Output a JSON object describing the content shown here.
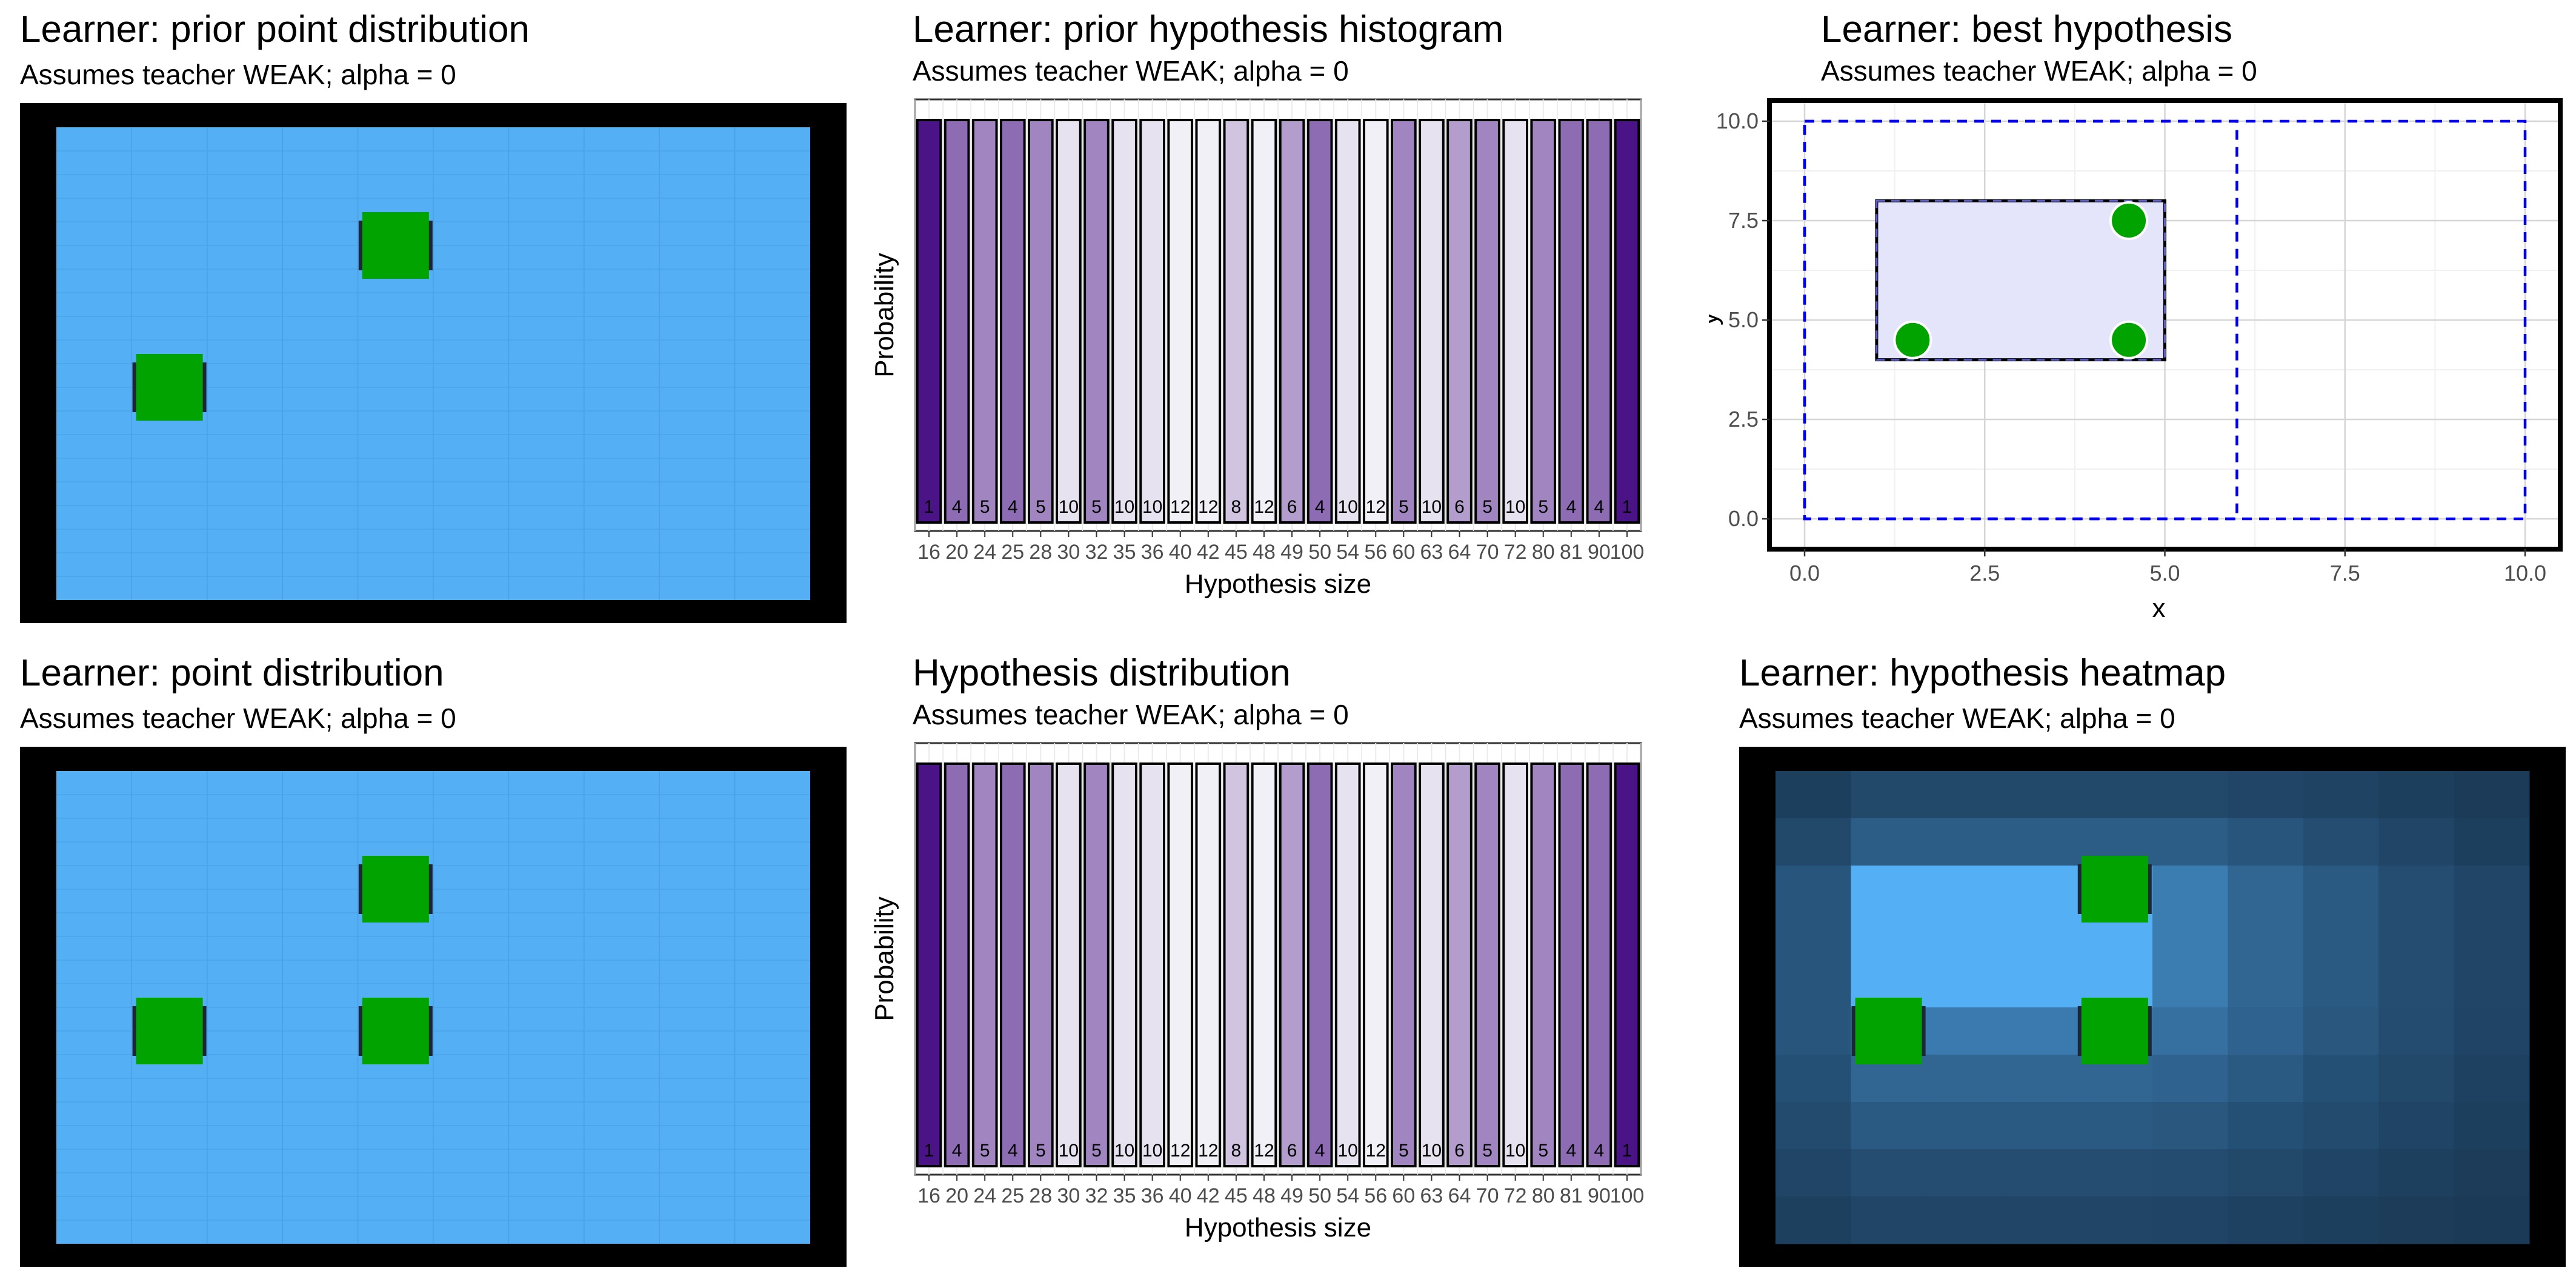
{
  "panels": {
    "prior_point": {
      "title": "Learner: prior point distribution",
      "subtitle": "Assumes teacher WEAK; alpha = 0"
    },
    "prior_hist": {
      "title": "Learner: prior hypothesis histogram",
      "subtitle": "Assumes teacher WEAK; alpha = 0"
    },
    "best_hyp": {
      "title": "Learner: best hypothesis",
      "subtitle": "Assumes teacher WEAK; alpha = 0"
    },
    "point_dist": {
      "title": "Learner: point distribution",
      "subtitle": "Assumes teacher WEAK; alpha = 0"
    },
    "hyp_dist": {
      "title": "Hypothesis distribution",
      "subtitle": "Assumes teacher WEAK; alpha = 0"
    },
    "heatmap": {
      "title": "Learner: hypothesis heatmap",
      "subtitle": "Assumes teacher WEAK; alpha = 0"
    }
  },
  "colors": {
    "grid_fill": "#55aff5",
    "point_marker": "#00a300",
    "panel_border": "#000000",
    "bar_light": "#f2f0f7",
    "bar_dark": "#4a1486",
    "hypothesis_fill": "#e4e4fb",
    "dashed_rect": "#0000ee"
  },
  "chart_data": [
    {
      "id": "prior_point",
      "type": "heatmap",
      "grid_cols": 10,
      "grid_rows": 10,
      "marker_cells": [
        [
          4.5,
          7.5
        ],
        [
          1.5,
          4.5
        ]
      ]
    },
    {
      "id": "prior_hist",
      "type": "bar",
      "xlabel": "Hypothesis size",
      "ylabel": "Probability",
      "categories": [
        "16",
        "20",
        "24",
        "25",
        "28",
        "30",
        "32",
        "35",
        "36",
        "40",
        "42",
        "45",
        "48",
        "49",
        "50",
        "54",
        "56",
        "60",
        "63",
        "64",
        "70",
        "72",
        "80",
        "81",
        "90",
        "100"
      ],
      "values": [
        1,
        1,
        1,
        1,
        1,
        1,
        1,
        1,
        1,
        1,
        1,
        1,
        1,
        1,
        1,
        1,
        1,
        1,
        1,
        1,
        1,
        1,
        1,
        1,
        1,
        1
      ],
      "counts": [
        1,
        4,
        5,
        4,
        5,
        10,
        5,
        10,
        10,
        12,
        12,
        8,
        12,
        6,
        4,
        10,
        12,
        5,
        10,
        6,
        5,
        10,
        5,
        4,
        4,
        1
      ]
    },
    {
      "id": "best_hyp",
      "type": "scatter",
      "xlabel": "x",
      "ylabel": "y",
      "xlim": [
        0,
        10
      ],
      "ylim": [
        0,
        10
      ],
      "xticks": [
        "0.0",
        "2.5",
        "5.0",
        "7.5",
        "10.0"
      ],
      "yticks": [
        "0.0",
        "2.5",
        "5.0",
        "7.5",
        "10.0"
      ],
      "grid": true,
      "best_rect": {
        "x0": 1,
        "x1": 5,
        "y0": 4,
        "y1": 8
      },
      "dashed_rects": [
        {
          "x0": 0,
          "x1": 6,
          "y0": 0,
          "y1": 10
        },
        {
          "x0": 0,
          "x1": 10,
          "y0": 0,
          "y1": 10
        }
      ],
      "points": [
        [
          4.5,
          7.5
        ],
        [
          1.5,
          4.5
        ],
        [
          4.5,
          4.5
        ]
      ]
    },
    {
      "id": "point_dist",
      "type": "heatmap",
      "grid_cols": 10,
      "grid_rows": 10,
      "marker_cells": [
        [
          4.5,
          7.5
        ],
        [
          1.5,
          4.5
        ],
        [
          4.5,
          4.5
        ]
      ]
    },
    {
      "id": "hyp_dist",
      "type": "bar",
      "xlabel": "Hypothesis size",
      "ylabel": "Probability",
      "categories": [
        "16",
        "20",
        "24",
        "25",
        "28",
        "30",
        "32",
        "35",
        "36",
        "40",
        "42",
        "45",
        "48",
        "49",
        "50",
        "54",
        "56",
        "60",
        "63",
        "64",
        "70",
        "72",
        "80",
        "81",
        "90",
        "100"
      ],
      "values": [
        1,
        1,
        1,
        1,
        1,
        1,
        1,
        1,
        1,
        1,
        1,
        1,
        1,
        1,
        1,
        1,
        1,
        1,
        1,
        1,
        1,
        1,
        1,
        1,
        1,
        1
      ],
      "counts": [
        1,
        4,
        5,
        4,
        5,
        10,
        5,
        10,
        10,
        12,
        12,
        8,
        12,
        6,
        4,
        10,
        12,
        5,
        10,
        6,
        5,
        10,
        5,
        4,
        4,
        1
      ]
    },
    {
      "id": "heatmap",
      "type": "heatmap",
      "grid_cols": 10,
      "grid_rows": 10,
      "values": [
        [
          0.15,
          0.22,
          0.22,
          0.22,
          0.22,
          0.22,
          0.2,
          0.18,
          0.15,
          0.12
        ],
        [
          0.22,
          0.38,
          0.38,
          0.38,
          0.38,
          0.38,
          0.32,
          0.26,
          0.2,
          0.15
        ],
        [
          0.32,
          1.0,
          1.0,
          1.0,
          1.0,
          0.62,
          0.45,
          0.35,
          0.26,
          0.2
        ],
        [
          0.32,
          1.0,
          1.0,
          1.0,
          1.0,
          0.62,
          0.45,
          0.35,
          0.26,
          0.2
        ],
        [
          0.32,
          1.0,
          1.0,
          1.0,
          1.0,
          0.62,
          0.45,
          0.35,
          0.26,
          0.2
        ],
        [
          0.32,
          0.6,
          0.6,
          0.6,
          0.6,
          0.52,
          0.42,
          0.33,
          0.25,
          0.19
        ],
        [
          0.28,
          0.45,
          0.45,
          0.45,
          0.45,
          0.42,
          0.35,
          0.28,
          0.22,
          0.17
        ],
        [
          0.24,
          0.35,
          0.35,
          0.35,
          0.35,
          0.33,
          0.28,
          0.24,
          0.19,
          0.15
        ],
        [
          0.2,
          0.26,
          0.26,
          0.26,
          0.26,
          0.25,
          0.22,
          0.19,
          0.16,
          0.13
        ],
        [
          0.16,
          0.2,
          0.2,
          0.2,
          0.2,
          0.19,
          0.17,
          0.15,
          0.13,
          0.11
        ]
      ],
      "marker_cells": [
        [
          4.5,
          7.5
        ],
        [
          1.5,
          4.5
        ],
        [
          4.5,
          4.5
        ]
      ]
    }
  ]
}
